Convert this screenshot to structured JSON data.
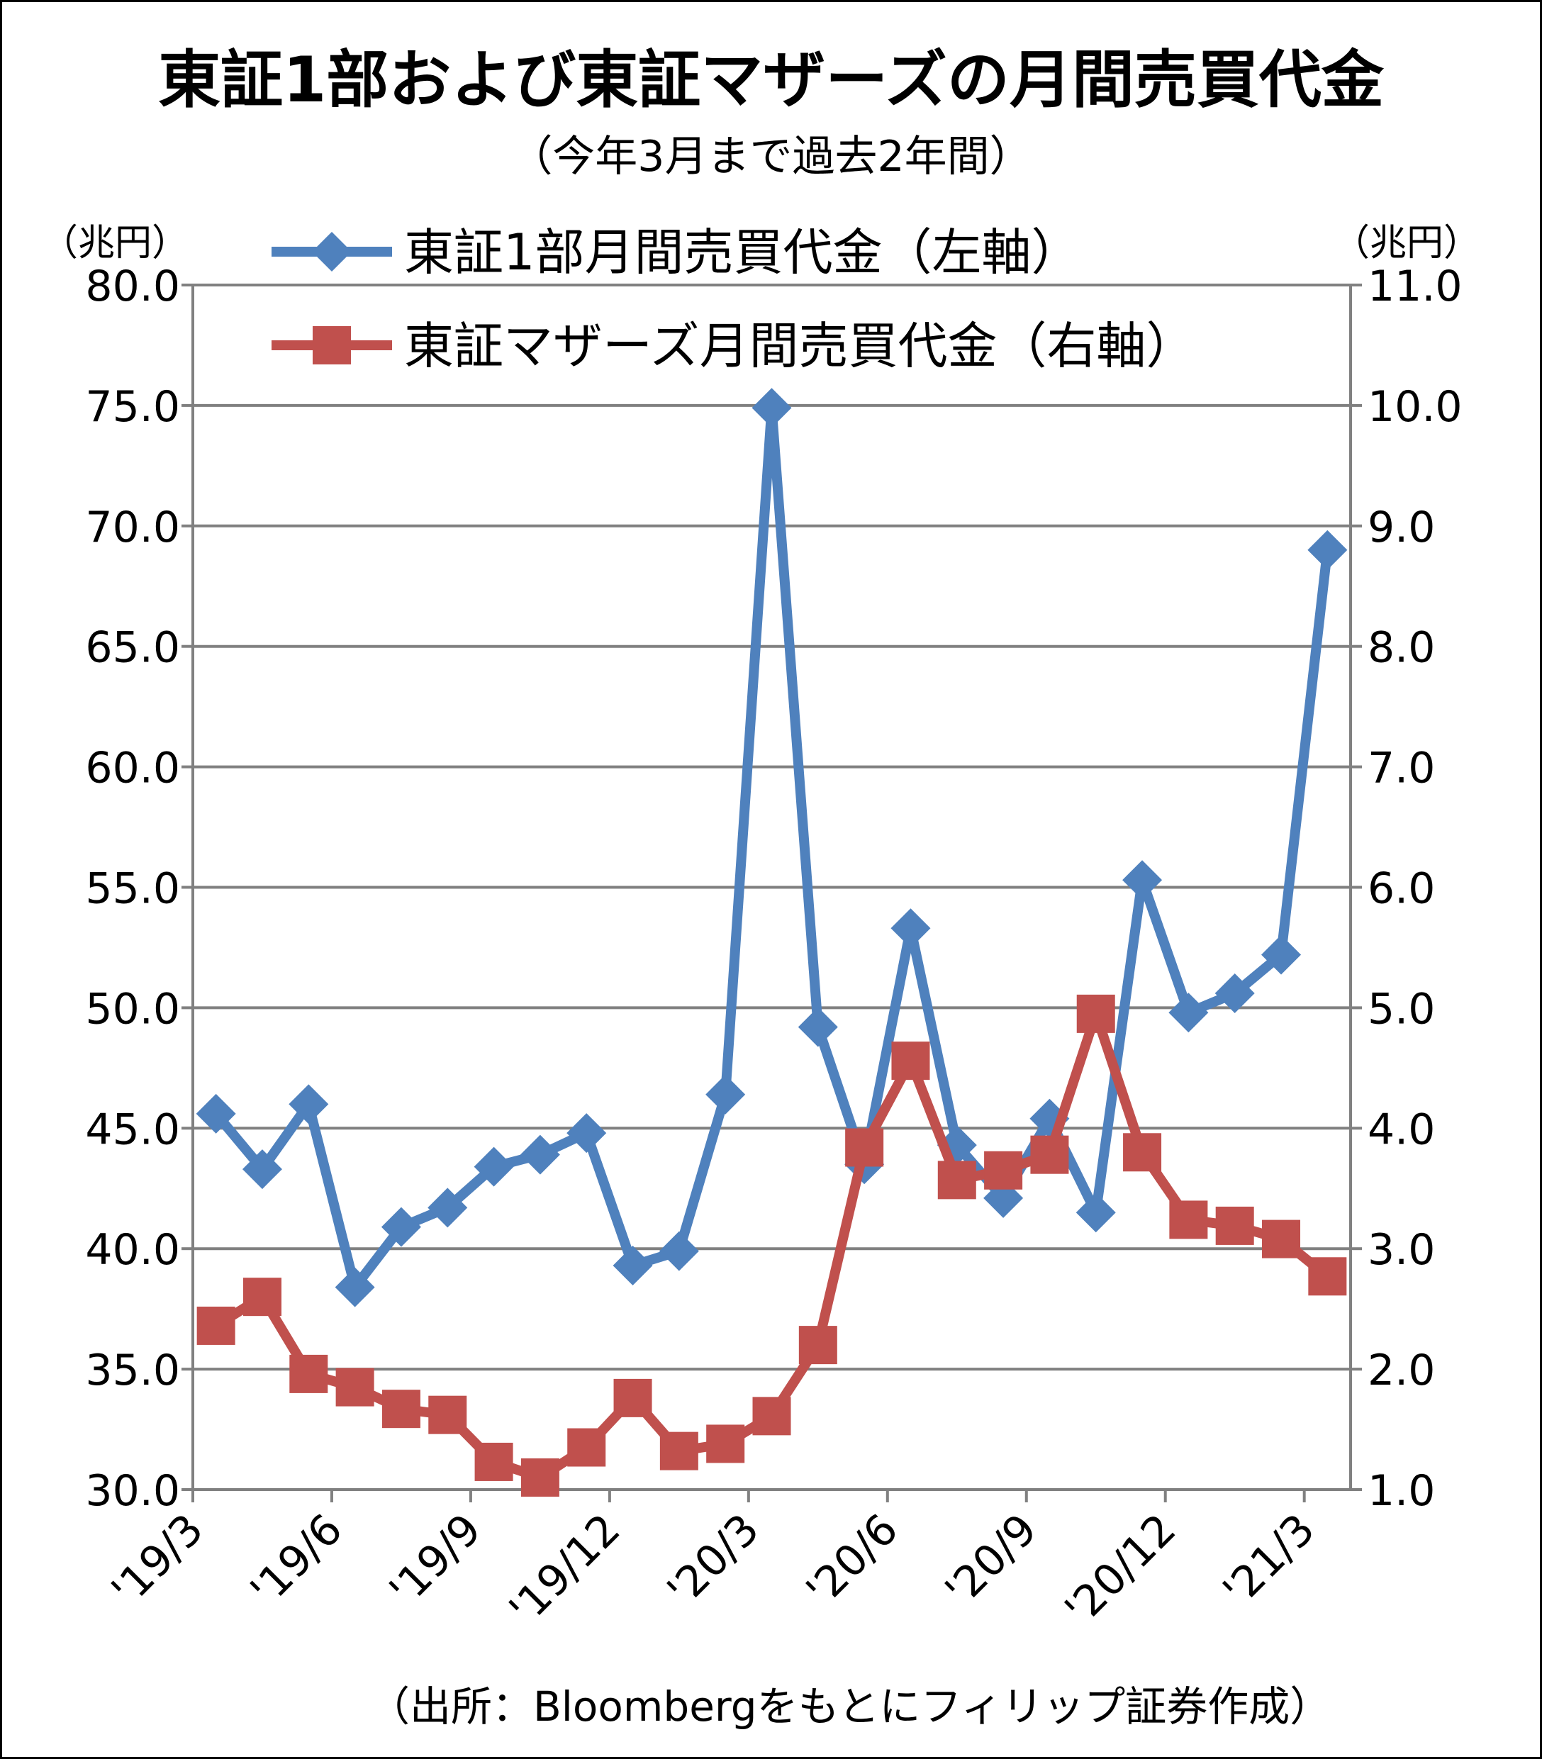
{
  "title": "東証1部および東証マザーズの月間売買代金",
  "subtitle": "（今年3月まで過去2年間）",
  "unit_left": "（兆円）",
  "unit_right": "（兆円）",
  "source": "（出所：Bloombergをもとにフィリップ証券作成）",
  "colors": {
    "series1": "#4F81BD",
    "series2": "#C0504D",
    "grid": "#808080"
  },
  "chart_data": {
    "type": "line",
    "title": "東証1部および東証マザーズの月間売買代金",
    "subtitle": "（今年3月まで過去2年間）",
    "legend_position": "top",
    "grid": true,
    "x_tick_labels": [
      "'19/3",
      "'19/6",
      "'19/9",
      "'19/12",
      "'20/3",
      "'20/6",
      "'20/9",
      "'20/12",
      "'21/3"
    ],
    "x": [
      "'19/3",
      "'19/4",
      "'19/5",
      "'19/6",
      "'19/7",
      "'19/8",
      "'19/9",
      "'19/10",
      "'19/11",
      "'19/12",
      "'20/1",
      "'20/2",
      "'20/3",
      "'20/4",
      "'20/5",
      "'20/6",
      "'20/7",
      "'20/8",
      "'20/9",
      "'20/10",
      "'20/11",
      "'20/12",
      "'21/1",
      "'21/2",
      "'21/3"
    ],
    "y_left": {
      "label": "（兆円）",
      "min": 30.0,
      "max": 80.0,
      "step": 5.0,
      "ticks": [
        "30.0",
        "35.0",
        "40.0",
        "45.0",
        "50.0",
        "55.0",
        "60.0",
        "65.0",
        "70.0",
        "75.0",
        "80.0"
      ]
    },
    "y_right": {
      "label": "（兆円）",
      "min": 1.0,
      "max": 11.0,
      "step": 1.0,
      "ticks": [
        "1.0",
        "2.0",
        "3.0",
        "4.0",
        "5.0",
        "6.0",
        "7.0",
        "8.0",
        "9.0",
        "10.0",
        "11.0"
      ]
    },
    "series": [
      {
        "name": "東証1部月間売買代金（左軸）",
        "axis": "left",
        "marker": "diamond",
        "values": [
          45.6,
          43.3,
          46.0,
          38.4,
          40.9,
          41.7,
          43.4,
          43.9,
          44.8,
          39.3,
          39.9,
          46.4,
          74.9,
          49.2,
          43.5,
          53.3,
          44.3,
          42.1,
          45.4,
          41.5,
          55.3,
          49.8,
          50.6,
          52.2,
          69.0
        ]
      },
      {
        "name": "東証マザーズ月間売買代金（右軸）",
        "axis": "right",
        "marker": "square",
        "values": [
          2.36,
          2.6,
          1.96,
          1.85,
          1.67,
          1.62,
          1.23,
          1.1,
          1.35,
          1.76,
          1.32,
          1.38,
          1.61,
          2.2,
          3.84,
          4.56,
          3.57,
          3.65,
          3.78,
          4.95,
          3.8,
          3.24,
          3.19,
          3.08,
          2.77
        ]
      }
    ]
  }
}
